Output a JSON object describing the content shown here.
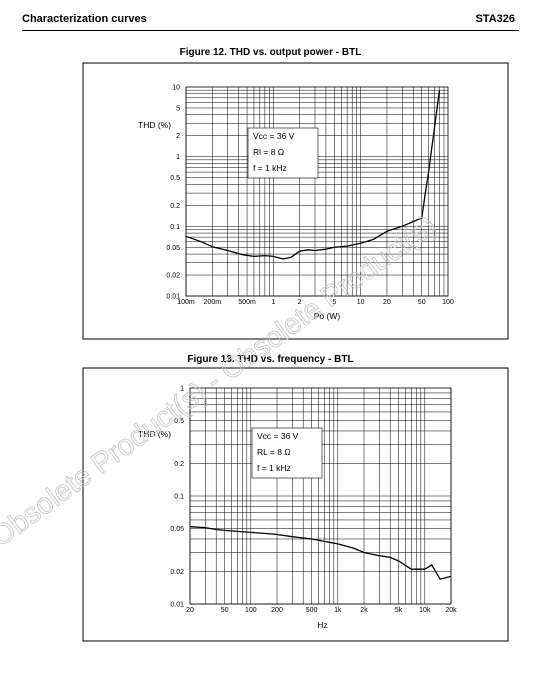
{
  "header": {
    "left": "Characterization curves",
    "right": "STA326"
  },
  "watermark": "Obsolete Product(s) - Obsolete Product(s)",
  "chart_data": [
    {
      "type": "line",
      "title": "Figure 12. THD vs. output power - BTL",
      "xlabel": "Po (W)",
      "ylabel": "THD (%)",
      "x_scale": "log",
      "y_scale": "log",
      "xlim": [
        0.1,
        100
      ],
      "ylim": [
        0.01,
        10
      ],
      "grid": true,
      "x_ticks": [
        {
          "v": 0.1,
          "label": "100m"
        },
        {
          "v": 0.2,
          "label": "200m"
        },
        {
          "v": 0.5,
          "label": "500m"
        },
        {
          "v": 1,
          "label": "1"
        },
        {
          "v": 2,
          "label": "2"
        },
        {
          "v": 5,
          "label": "5"
        },
        {
          "v": 10,
          "label": "10"
        },
        {
          "v": 20,
          "label": "20"
        },
        {
          "v": 50,
          "label": "50"
        },
        {
          "v": 100,
          "label": "100"
        }
      ],
      "y_ticks": [
        {
          "v": 0.01,
          "label": "0.01"
        },
        {
          "v": 0.02,
          "label": "0.02"
        },
        {
          "v": 0.05,
          "label": "0.05"
        },
        {
          "v": 0.1,
          "label": "0.1"
        },
        {
          "v": 0.2,
          "label": "0.2"
        },
        {
          "v": 0.5,
          "label": "0.5"
        },
        {
          "v": 1,
          "label": "1"
        },
        {
          "v": 2,
          "label": "2"
        },
        {
          "v": 5,
          "label": "5"
        },
        {
          "v": 10,
          "label": "10"
        }
      ],
      "annotations": [
        "Vcc = 36 V",
        "Rl = 8 Ω",
        "f = 1 kHz"
      ],
      "x": [
        0.1,
        0.15,
        0.2,
        0.3,
        0.45,
        0.6,
        0.8,
        1.0,
        1.3,
        1.6,
        2.0,
        2.5,
        3.0,
        4.0,
        5.0,
        7.0,
        10,
        14,
        20,
        30,
        45,
        50,
        55,
        60,
        68,
        75,
        80
      ],
      "y": [
        0.072,
        0.06,
        0.051,
        0.045,
        0.039,
        0.037,
        0.038,
        0.037,
        0.034,
        0.036,
        0.044,
        0.046,
        0.045,
        0.047,
        0.05,
        0.052,
        0.057,
        0.065,
        0.085,
        0.1,
        0.125,
        0.13,
        0.3,
        0.6,
        2.0,
        5.0,
        9.0
      ]
    },
    {
      "type": "line",
      "title": "Figure 13. THD vs. frequency - BTL",
      "xlabel": "Hz",
      "ylabel": "THD (%)",
      "x_scale": "log",
      "y_scale": "log",
      "xlim": [
        20,
        20000
      ],
      "ylim": [
        0.01,
        1
      ],
      "grid": true,
      "x_ticks": [
        {
          "v": 20,
          "label": "20"
        },
        {
          "v": 50,
          "label": "50"
        },
        {
          "v": 100,
          "label": "100"
        },
        {
          "v": 200,
          "label": "200"
        },
        {
          "v": 500,
          "label": "500"
        },
        {
          "v": 1000,
          "label": "1k"
        },
        {
          "v": 2000,
          "label": "2k"
        },
        {
          "v": 5000,
          "label": "5k"
        },
        {
          "v": 10000,
          "label": "10k"
        },
        {
          "v": 20000,
          "label": "20k"
        }
      ],
      "y_ticks": [
        {
          "v": 0.01,
          "label": "0.01"
        },
        {
          "v": 0.02,
          "label": "0.02"
        },
        {
          "v": 0.05,
          "label": "0.05"
        },
        {
          "v": 0.1,
          "label": "0.1"
        },
        {
          "v": 0.2,
          "label": "0.2"
        },
        {
          "v": 0.5,
          "label": "0.5"
        },
        {
          "v": 1,
          "label": "1"
        }
      ],
      "annotations": [
        "Vcc = 36 V",
        "RL = 8 Ω",
        "f = 1 kHz"
      ],
      "x": [
        20,
        30,
        40,
        50,
        70,
        100,
        150,
        200,
        300,
        500,
        700,
        1000,
        1500,
        2000,
        3000,
        4000,
        5000,
        7000,
        10000,
        12000,
        15000,
        20000
      ],
      "y": [
        0.052,
        0.051,
        0.049,
        0.048,
        0.047,
        0.046,
        0.045,
        0.044,
        0.042,
        0.04,
        0.038,
        0.036,
        0.033,
        0.03,
        0.028,
        0.027,
        0.025,
        0.021,
        0.021,
        0.023,
        0.017,
        0.018
      ]
    }
  ]
}
